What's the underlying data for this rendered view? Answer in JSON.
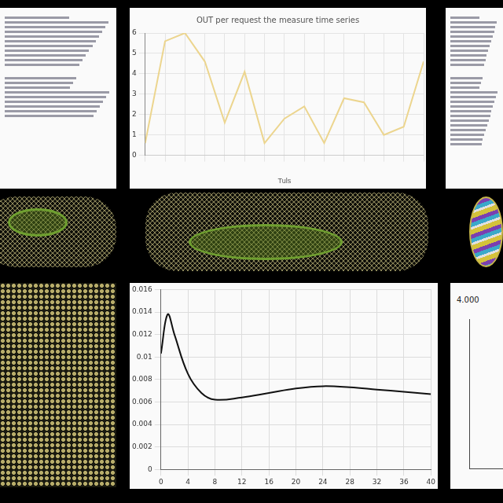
{
  "chart_data": [
    {
      "type": "line",
      "title": "OUT per request the measure time series",
      "x_label": "Tuls",
      "categories": [
        null,
        null,
        null,
        null,
        null,
        null,
        null,
        null,
        null,
        null,
        null,
        null,
        null,
        null,
        null
      ],
      "values": [
        0.6,
        5.6,
        6.0,
        4.6,
        1.6,
        4.1,
        0.6,
        1.8,
        2.4,
        0.6,
        2.8,
        2.6,
        1.0,
        1.4,
        4.6
      ],
      "color": "#ecd58e",
      "ylim": [
        0,
        6
      ],
      "yticks": [
        0,
        1,
        2,
        3,
        4,
        5,
        6
      ],
      "grid": true
    },
    {
      "type": "line",
      "x": [
        0,
        1,
        2,
        4,
        6,
        8,
        12,
        16,
        20,
        24,
        28,
        32,
        36,
        40
      ],
      "values": [
        0.0103,
        0.0138,
        0.012,
        0.0085,
        0.0068,
        0.0062,
        0.0064,
        0.0068,
        0.0072,
        0.0074,
        0.0073,
        0.0071,
        0.0069,
        0.0067
      ],
      "color": "#111111",
      "xlim": [
        0,
        40
      ],
      "xticks": [
        0,
        4,
        8,
        12,
        16,
        20,
        24,
        28,
        32,
        36,
        40
      ],
      "ylim": [
        0,
        0.016
      ],
      "yticks": [
        0,
        0.002,
        0.004,
        0.006,
        0.008,
        0.01,
        0.012,
        0.014,
        0.016
      ],
      "grid": true
    }
  ],
  "panels": {
    "bottom_right_chart": {
      "label": "4.000"
    }
  }
}
